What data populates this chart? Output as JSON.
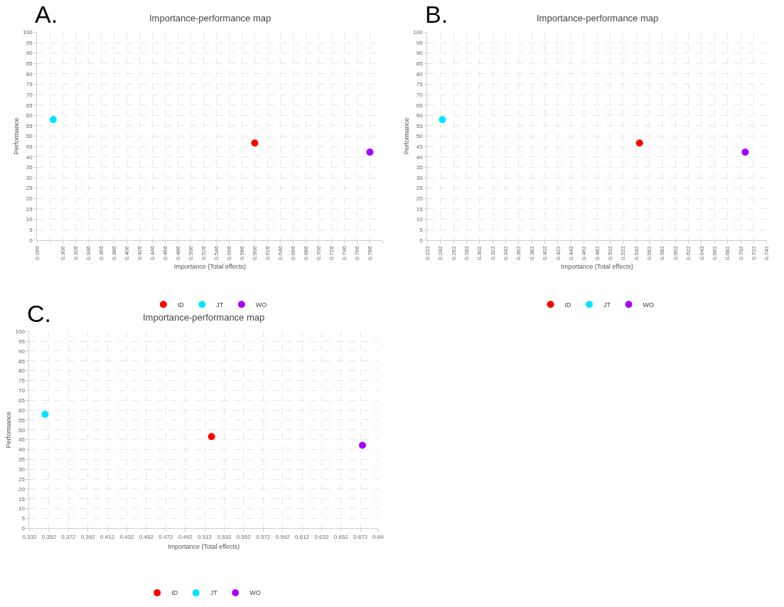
{
  "chart_data": [
    {
      "type": "scatter",
      "title": "Importance-performance map",
      "xlabel": "Importance (Total effects)",
      "ylabel": "Performance",
      "annotations": [
        "A."
      ],
      "marker": "circle",
      "grid": true,
      "legend": "bottom",
      "xlim": [
        0.266,
        0.806
      ],
      "xticks": [
        0.266,
        {
          "value": 0.286,
          "label": null
        },
        0.306,
        0.326,
        0.346,
        0.366,
        0.386,
        0.406,
        0.426,
        0.446,
        0.466,
        0.486,
        0.506,
        0.526,
        0.546,
        0.566,
        0.586,
        0.606,
        0.626,
        0.646,
        0.666,
        0.686,
        0.706,
        0.726,
        0.746,
        0.766,
        0.786,
        {
          "value": 0.806,
          "label": null
        }
      ],
      "ylim": [
        0,
        100
      ],
      "yticks": [
        0,
        5,
        10,
        15,
        20,
        25,
        30,
        35,
        40,
        45,
        50,
        55,
        60,
        65,
        70,
        75,
        80,
        85,
        90,
        95,
        100
      ],
      "series": [
        {
          "name": "ID",
          "color": "#ff0000",
          "x": [
            0.606
          ],
          "values": [
            46.7
          ]
        },
        {
          "name": "JT",
          "color": "#00e5ff",
          "x": [
            0.291
          ],
          "values": [
            58
          ]
        },
        {
          "name": "WO",
          "color": "#aa00ff",
          "x": [
            0.786
          ],
          "values": [
            42.3
          ]
        }
      ]
    },
    {
      "type": "scatter",
      "title": "Importance-performance map",
      "xlabel": "Importance (Total effects)",
      "ylabel": "Performance",
      "annotations": [
        "B."
      ],
      "marker": "circle",
      "grid": true,
      "legend": "bottom",
      "xlim": [
        0.222,
        0.742
      ],
      "xticks": [
        0.222,
        0.242,
        0.262,
        0.282,
        0.302,
        0.322,
        0.342,
        0.362,
        0.382,
        0.402,
        0.422,
        0.442,
        0.462,
        0.482,
        0.502,
        0.522,
        0.542,
        0.562,
        0.582,
        0.602,
        0.622,
        0.642,
        0.662,
        0.682,
        0.702,
        0.722,
        0.742
      ],
      "ylim": [
        0,
        100
      ],
      "yticks": [
        0,
        5,
        10,
        15,
        20,
        25,
        30,
        35,
        40,
        45,
        50,
        55,
        60,
        65,
        70,
        75,
        80,
        85,
        90,
        95,
        100
      ],
      "series": [
        {
          "name": "ID",
          "color": "#ff0000",
          "x": [
            0.547
          ],
          "values": [
            46.7
          ]
        },
        {
          "name": "JT",
          "color": "#00e5ff",
          "x": [
            0.245
          ],
          "values": [
            58
          ]
        },
        {
          "name": "WO",
          "color": "#aa00ff",
          "x": [
            0.709
          ],
          "values": [
            42.3
          ]
        }
      ]
    },
    {
      "type": "scatter",
      "title": "Importance-performance map",
      "xlabel": "Importance (Total effects)",
      "ylabel": "Performance",
      "annotations": [
        "C."
      ],
      "marker": "circle",
      "grid": true,
      "legend": "bottom",
      "xlim": [
        0.332,
        0.69
      ],
      "xticks": [
        0.332,
        0.352,
        0.372,
        0.392,
        0.412,
        0.432,
        0.452,
        0.472,
        0.492,
        0.512,
        0.532,
        0.552,
        0.572,
        0.592,
        0.612,
        0.632,
        0.652,
        0.672,
        0.69
      ],
      "ylim": [
        0,
        100
      ],
      "yticks": [
        0,
        5,
        10,
        15,
        20,
        25,
        30,
        35,
        40,
        45,
        50,
        55,
        60,
        65,
        70,
        75,
        80,
        85,
        90,
        95,
        100
      ],
      "series": [
        {
          "name": "ID",
          "color": "#ff0000",
          "x": [
            0.519
          ],
          "values": [
            46.6
          ]
        },
        {
          "name": "JT",
          "color": "#00e5ff",
          "x": [
            0.348
          ],
          "values": [
            57.9
          ]
        },
        {
          "name": "WO",
          "color": "#aa00ff",
          "x": [
            0.674
          ],
          "values": [
            42.2
          ]
        }
      ]
    }
  ]
}
